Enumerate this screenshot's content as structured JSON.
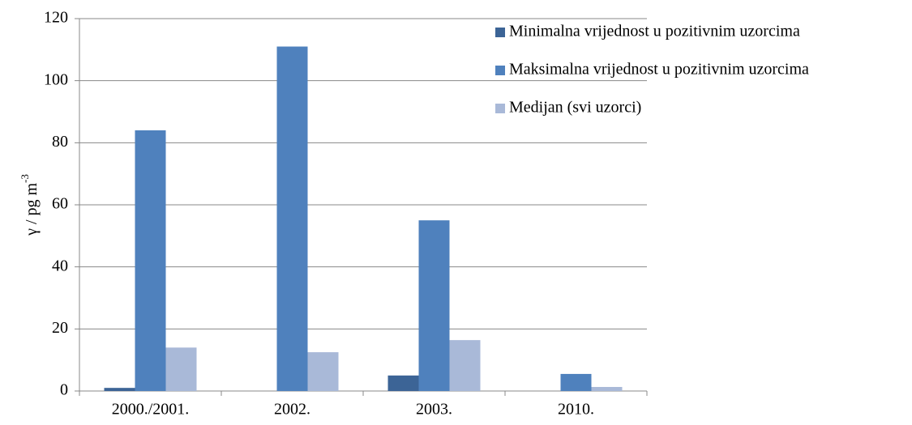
{
  "chart_data": {
    "type": "bar",
    "y_label": {
      "text": "γ / pg m",
      "superscript": "-3"
    },
    "categories": [
      "2000./2001.",
      "2002.",
      "2003.",
      "2010."
    ],
    "series": [
      {
        "name": "Minimalna vrijednost u pozitivnim uzorcima",
        "color": "#3c6496",
        "values": [
          1,
          0,
          5,
          0
        ]
      },
      {
        "name": "Maksimalna vrijednost u pozitivnim uzorcima",
        "color": "#4f81bd",
        "values": [
          84,
          111,
          55,
          5.5
        ]
      },
      {
        "name": "Medijan (svi uzorci)",
        "color": "#a9b9d8",
        "values": [
          14,
          12.5,
          16.4,
          1.3
        ]
      }
    ],
    "ylim": [
      0,
      120
    ],
    "yticks": [
      0,
      20,
      40,
      60,
      80,
      100,
      120
    ],
    "grid": true,
    "legend": "top-right"
  }
}
